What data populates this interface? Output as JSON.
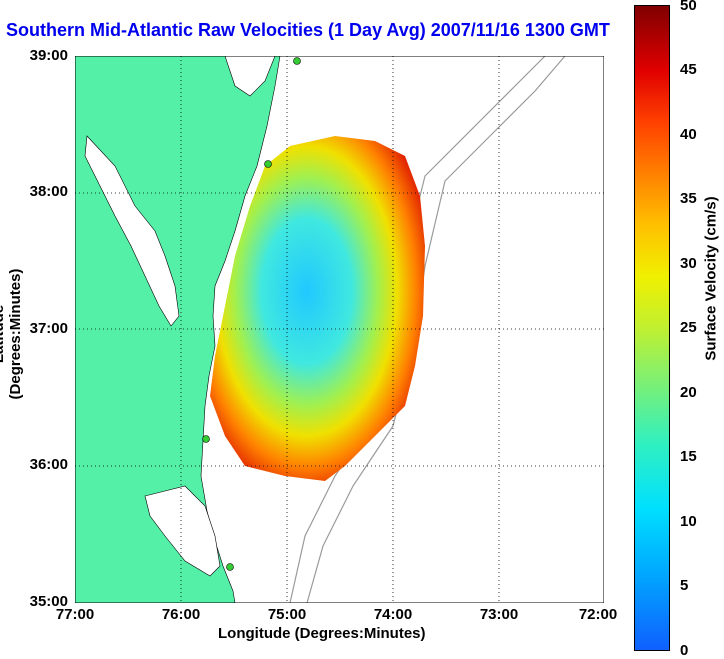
{
  "title": "Southern Mid-Atlantic Raw Velocities (1 Day Avg) 2007/11/16 1300 GMT",
  "axes": {
    "xlabel": "Longitude (Degrees:Minutes)",
    "ylabel": "Latitude (Degrees:Minutes)",
    "xticks": [
      "77:00",
      "76:00",
      "75:00",
      "74:00",
      "73:00",
      "72:00"
    ],
    "yticks": [
      "39:00",
      "38:00",
      "37:00",
      "36:00",
      "35:00"
    ]
  },
  "colorbar": {
    "label": "Surface Velocity (cm/s)",
    "ticks": [
      "50",
      "45",
      "40",
      "35",
      "30",
      "25",
      "20",
      "15",
      "10",
      "5",
      "0"
    ],
    "range": [
      0,
      50
    ]
  },
  "colors": {
    "land": "#55f0a8",
    "title": "#0000ee",
    "bathymetry": "#9a9a9a",
    "station": "#33cc33"
  },
  "map": {
    "lon_range": [
      -77,
      -72
    ],
    "lat_range": [
      35,
      39
    ],
    "grid": true
  }
}
